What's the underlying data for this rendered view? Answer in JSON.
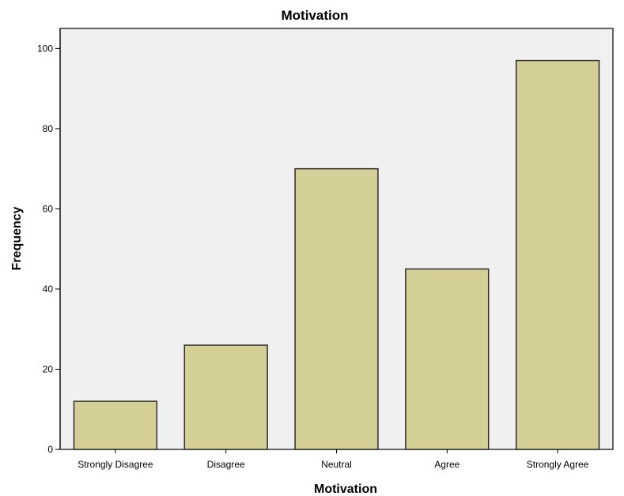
{
  "chart_data": {
    "type": "bar",
    "title": "Motivation",
    "xlabel": "Motivation",
    "ylabel": "Frequency",
    "categories": [
      "Strongly Disagree",
      "Disagree",
      "Neutral",
      "Agree",
      "Strongly Agree"
    ],
    "values": [
      12,
      26,
      70,
      45,
      97
    ],
    "ylim": [
      0,
      105
    ],
    "yticks": [
      "0",
      "20",
      "40",
      "60",
      "80",
      "100"
    ],
    "grid": false,
    "colors": {
      "bar_fill": "#d4cf96",
      "bar_stroke": "#2e2e2e",
      "plot_background": "#f0f0f0",
      "plot_border": "#333333"
    }
  }
}
